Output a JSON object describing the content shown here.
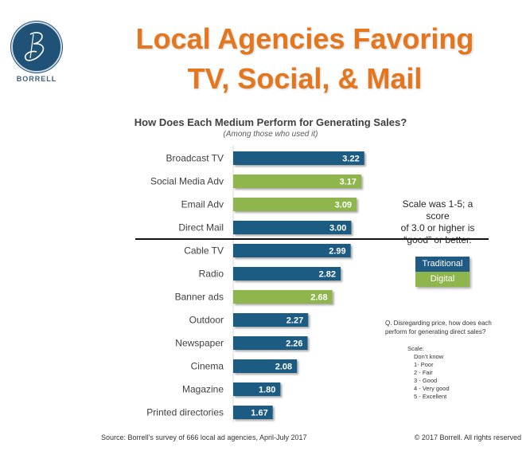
{
  "logo": {
    "icon": "borrell-b-monogram",
    "text": "BORRELL"
  },
  "title": {
    "line1": "Local Agencies Favoring",
    "line2": "TV, Social, & Mail"
  },
  "note": {
    "line1": "Scale was 1-5; a score",
    "line2": "of 3.0 or higher is",
    "line3": "“good” or better."
  },
  "legend": [
    {
      "label": "Traditional",
      "color": "#1f5b82"
    },
    {
      "label": "Digital",
      "color": "#8fb54d"
    }
  ],
  "question": {
    "line1": "Q. Disregarding price, how does each",
    "line2": "perform for generating direct sales?"
  },
  "scale": {
    "heading": "Scale:",
    "items": [
      "Don’t know",
      "1- Poor",
      "2 - Fair",
      "3 - Good",
      "4 - Very good",
      "5 - Excellent"
    ]
  },
  "footer": {
    "source": "Source: Borrell’s survey of 666 local ad agencies, April-July 2017",
    "copyright": "© 2017 Borrell. All rights reserved"
  },
  "chart_data": {
    "type": "bar",
    "orientation": "horizontal",
    "title": "How Does Each Medium Perform for Generating Sales?",
    "subtitle": "(Among those who used it)",
    "xlabel": "",
    "ylabel": "",
    "xlim": [
      1,
      5
    ],
    "grid": false,
    "legend_position": "right",
    "threshold": {
      "value": 3.0,
      "after_category": "Direct Mail"
    },
    "categories": [
      "Broadcast TV",
      "Social Media Adv",
      "Email Adv",
      "Direct Mail",
      "Cable TV",
      "Radio",
      "Banner ads",
      "Outdoor",
      "Newspaper",
      "Cinema",
      "Magazine",
      "Printed directories"
    ],
    "values": [
      3.22,
      3.17,
      3.09,
      3.0,
      2.99,
      2.82,
      2.68,
      2.27,
      2.26,
      2.08,
      1.8,
      1.67
    ],
    "labels": [
      "3.22",
      "3.17",
      "3.09",
      "3.00",
      "2.99",
      "2.82",
      "2.68",
      "2.27",
      "2.26",
      "2.08",
      "1.80",
      "1.67"
    ],
    "groups": [
      "Traditional",
      "Digital",
      "Digital",
      "Traditional",
      "Traditional",
      "Traditional",
      "Digital",
      "Traditional",
      "Traditional",
      "Traditional",
      "Traditional",
      "Traditional"
    ],
    "group_colors": {
      "Traditional": "#1f5b82",
      "Digital": "#8fb54d"
    }
  }
}
